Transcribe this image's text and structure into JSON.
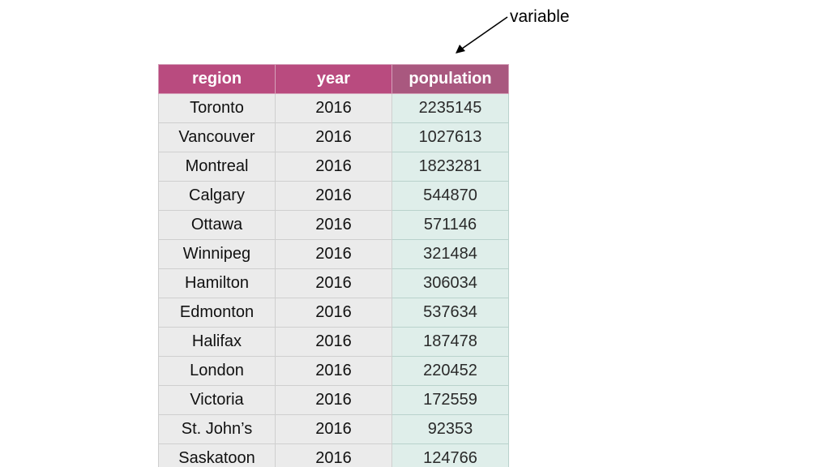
{
  "annotation": {
    "label": "variable"
  },
  "table": {
    "columns": [
      "region",
      "year",
      "population"
    ],
    "highlighted_column": "population",
    "rows": [
      [
        "Toronto",
        "2016",
        "2235145"
      ],
      [
        "Vancouver",
        "2016",
        "1027613"
      ],
      [
        "Montreal",
        "2016",
        "1823281"
      ],
      [
        "Calgary",
        "2016",
        "544870"
      ],
      [
        "Ottawa",
        "2016",
        "571146"
      ],
      [
        "Winnipeg",
        "2016",
        "321484"
      ],
      [
        "Hamilton",
        "2016",
        "306034"
      ],
      [
        "Edmonton",
        "2016",
        "537634"
      ],
      [
        "Halifax",
        "2016",
        "187478"
      ],
      [
        "London",
        "2016",
        "220452"
      ],
      [
        "Victoria",
        "2016",
        "172559"
      ],
      [
        "St. John’s",
        "2016",
        "92353"
      ],
      [
        "Saskatoon",
        "2016",
        "124766"
      ]
    ]
  },
  "colors": {
    "header_background": "#b94b7f",
    "highlight_header_background": "#a9587f",
    "cell_background": "#ebebeb",
    "highlight_cell_background": "#dfeeea"
  }
}
